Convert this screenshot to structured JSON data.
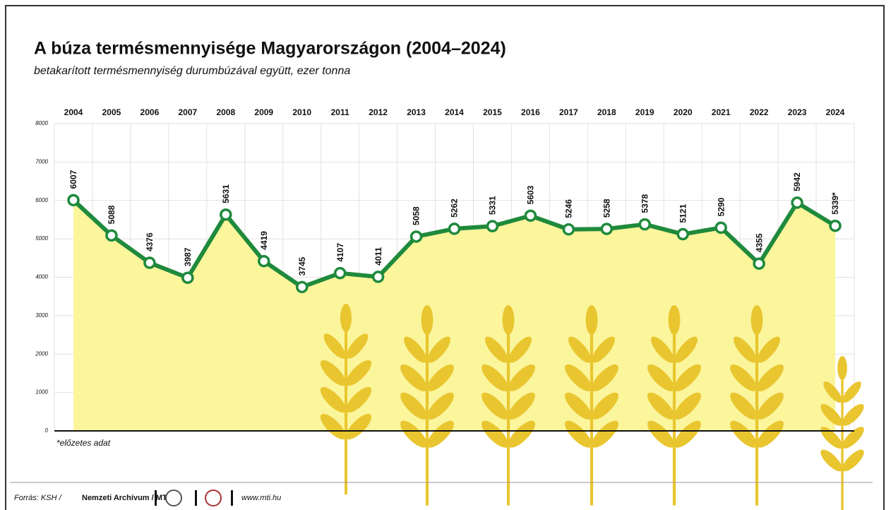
{
  "chart_data": {
    "type": "area-line",
    "title": "A búza termésmennyisége Magyarországon (2004–2024)",
    "subtitle": "betakarított termésmennyiség durumbúzával együtt, ezer tonna",
    "categories": [
      "2004",
      "2005",
      "2006",
      "2007",
      "2008",
      "2009",
      "2010",
      "2011",
      "2012",
      "2013",
      "2014",
      "2015",
      "2016",
      "2017",
      "2018",
      "2019",
      "2020",
      "2021",
      "2022",
      "2023",
      "2024"
    ],
    "values": [
      6007,
      5088,
      4376,
      3987,
      5631,
      4419,
      3745,
      4107,
      4011,
      5058,
      5262,
      5331,
      5603,
      5246,
      5258,
      5378,
      5121,
      5290,
      4355,
      5942,
      5339
    ],
    "value_labels": [
      "6007",
      "5088",
      "4376",
      "3987",
      "5631",
      "4419",
      "3745",
      "4107",
      "4011",
      "5058",
      "5262",
      "5331",
      "5603",
      "5246",
      "5258",
      "5378",
      "5121",
      "5290",
      "4355",
      "5942",
      "5339*"
    ],
    "line_color": "#1f8a3c",
    "area_color": "#fbf59c",
    "ylim": [
      0,
      8000
    ],
    "yticks": [
      0,
      1000,
      2000,
      3000,
      4000,
      5000,
      6000,
      7000,
      8000
    ],
    "grid": true,
    "note": "*előzetes adat",
    "source": [
      "Forrás: KSH /",
      "Nemzeti Archívum / MTI"
    ],
    "website": "www.mti.hu"
  }
}
